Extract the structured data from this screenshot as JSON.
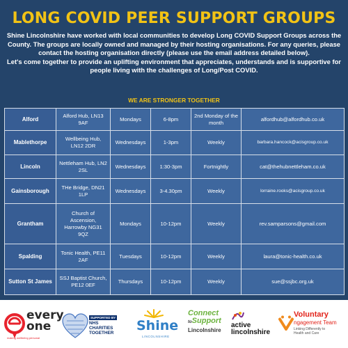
{
  "header": {
    "title": "LONG COVID PEER SUPPORT GROUPS",
    "intro_p1": "Shine Lincolnshire have worked with local communities to develop Long COVID Support Groups across the County. The groups are locally owned and managed by their hosting organisations. For any queries, please contact the hosting organisation directly (please use the email address detailed below).",
    "intro_p2": "Let's come together to provide an uplifting environment that appreciates, understands and is supportive for people living with the challenges of Long/Post COVID.",
    "motto": "WE ARE STRONGER TOGETHER"
  },
  "groups": [
    {
      "location": "Alford",
      "venue": "Alford Hub, LN13 9AF",
      "day": "Mondays",
      "time": "6-8pm",
      "frequency": "2nd Monday of the month",
      "email": "alfordhub@alfordhub.co.uk"
    },
    {
      "location": "Mablethorpe",
      "venue": "Wellbeing Hub, LN12 2DR",
      "day": "Wednesdays",
      "time": "1-3pm",
      "frequency": "Weekly",
      "email": "barbara.hancock@acisgroup.co.uk"
    },
    {
      "location": "Lincoln",
      "venue": "Nettleham Hub, LN2 2SL",
      "day": "Wednesdays",
      "time": "1:30-3pm",
      "frequency": "Fortnightly",
      "email": "cat@thehubnettleham.co.uk"
    },
    {
      "location": "Gainsborough",
      "venue": "THe Bridge, DN21 1LP",
      "day": "Wednesdays",
      "time": "3-4.30pm",
      "frequency": "Weekly",
      "email": "lorraine.rooks@acisgroup.co.uk"
    },
    {
      "location": "Grantham",
      "venue": "Church of Ascension, Harrowby NG31 9QZ",
      "day": "Mondays",
      "time": "10-12pm",
      "frequency": "Weekly",
      "email": "rev.samparsons@gmail.com"
    },
    {
      "location": "Spalding",
      "venue": "Tonic Health, PE11 2AF",
      "day": "Tuesdays",
      "time": "10-12pm",
      "frequency": "Weekly",
      "email": "laura@tonic-health.co.uk"
    },
    {
      "location": "Sutton St James",
      "venue": "SSJ Baptist Church, PE12 0EF",
      "day": "Thursdays",
      "time": "10-12pm",
      "frequency": "Weekly",
      "email": "sue@ssjbc.org.uk"
    }
  ],
  "logos": {
    "everyone": {
      "name_line1": "every",
      "name_line2": "one",
      "tagline": "making wellbeing personal"
    },
    "nhs": {
      "supported_by": "SUPPORTED BY",
      "line1": "NHS",
      "line2": "CHARITIES",
      "line3": "TOGETHER"
    },
    "shine": {
      "name": "Shine",
      "sub": "LINCOLNSHIRE"
    },
    "connect": {
      "line1": "Connect",
      "line2": "to",
      "line3": "Support",
      "line4": "Lincolnshire"
    },
    "active": {
      "line1": "active",
      "line2": "lincolnshire"
    },
    "voluntary": {
      "line1": "Voluntary",
      "line2": "ngagement Team",
      "line3": "Linking Differently to",
      "line4": "Health and Care"
    }
  },
  "colors": {
    "background": "#24446a",
    "accent_yellow": "#f2c315",
    "table_cell": "#3e679e"
  }
}
